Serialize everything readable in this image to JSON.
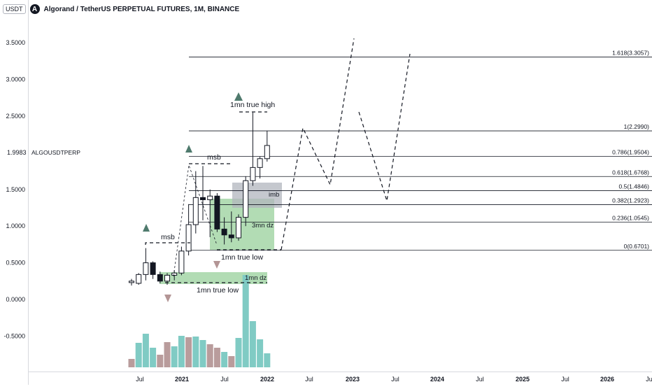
{
  "header": {
    "currency_badge": "USDT",
    "logo_glyph": "A",
    "title": "Algorand / TetherUS PERPETUAL FUTURES, 1M, BINANCE"
  },
  "price_axis": {
    "ticks": [
      {
        "label": "3.5000",
        "value": 3.5
      },
      {
        "label": "3.0000",
        "value": 3.0
      },
      {
        "label": "2.5000",
        "value": 2.5
      },
      {
        "label": "1.5000",
        "value": 1.5
      },
      {
        "label": "1.0000",
        "value": 1.0
      },
      {
        "label": "0.5000",
        "value": 0.5
      },
      {
        "label": "0.0000",
        "value": 0.0
      },
      {
        "label": "-0.5000",
        "value": -0.5
      }
    ],
    "current_price": "1.9983",
    "symbol_label": "ALGOUSDTPERP"
  },
  "time_axis": {
    "ticks": [
      "Jul",
      "2021",
      "Jul",
      "2022",
      "Jul",
      "2023",
      "Jul",
      "2024",
      "Jul",
      "2025",
      "Jul",
      "2026",
      "Jul"
    ]
  },
  "fib_levels": [
    {
      "label": "1.618(3.3057)",
      "value": 3.3057
    },
    {
      "label": "1(2.2990)",
      "value": 2.299
    },
    {
      "label": "0.786(1.9504)",
      "value": 1.9504
    },
    {
      "label": "0.618(1.6768)",
      "value": 1.6768
    },
    {
      "label": "0.5(1.4846)",
      "value": 1.4846
    },
    {
      "label": "0.382(1.2923)",
      "value": 1.2923
    },
    {
      "label": "0.236(1.0545)",
      "value": 1.0545
    },
    {
      "label": "0(0.6701)",
      "value": 0.6701
    }
  ],
  "annotations": {
    "true_high": "1mn true high",
    "msb_upper": "msb",
    "msb_lower": "msb",
    "imb": "imb",
    "dz_3mn": "3mn dz",
    "true_low_upper": "1mn true low",
    "dz_1mn": "1mn dz",
    "true_low_lower": "1mn true low"
  },
  "colors": {
    "bull_candle": "#ffffff",
    "bear_candle": "#131722",
    "demand_zone": "#a5d6a7",
    "imbalance_zone": "#b2b5be",
    "volume_up": "#80cbc4",
    "volume_down": "#b99c9c",
    "up_arrow": "#4f7a6d",
    "down_arrow": "#b39595"
  },
  "candles": [
    {
      "o": 0.23,
      "h": 0.28,
      "l": 0.19,
      "c": 0.25
    },
    {
      "o": 0.22,
      "h": 0.36,
      "l": 0.2,
      "c": 0.34
    },
    {
      "o": 0.34,
      "h": 0.7,
      "l": 0.26,
      "c": 0.5
    },
    {
      "o": 0.5,
      "h": 0.52,
      "l": 0.28,
      "c": 0.34
    },
    {
      "o": 0.34,
      "h": 0.38,
      "l": 0.22,
      "c": 0.25
    },
    {
      "o": 0.25,
      "h": 0.36,
      "l": 0.2,
      "c": 0.33
    },
    {
      "o": 0.33,
      "h": 0.4,
      "l": 0.26,
      "c": 0.36
    },
    {
      "o": 0.36,
      "h": 0.72,
      "l": 0.33,
      "c": 0.66
    },
    {
      "o": 0.66,
      "h": 1.3,
      "l": 0.6,
      "c": 1.02
    },
    {
      "o": 1.02,
      "h": 1.75,
      "l": 0.9,
      "c": 1.39
    },
    {
      "o": 1.39,
      "h": 1.82,
      "l": 1.08,
      "c": 1.36
    },
    {
      "o": 1.36,
      "h": 1.5,
      "l": 0.85,
      "c": 1.41
    },
    {
      "o": 1.41,
      "h": 1.45,
      "l": 0.92,
      "c": 0.96
    },
    {
      "o": 0.96,
      "h": 1.12,
      "l": 0.75,
      "c": 0.88
    },
    {
      "o": 0.88,
      "h": 1.2,
      "l": 0.78,
      "c": 0.84
    },
    {
      "o": 0.84,
      "h": 1.16,
      "l": 0.8,
      "c": 1.12
    },
    {
      "o": 1.12,
      "h": 1.68,
      "l": 1.0,
      "c": 1.62
    },
    {
      "o": 1.62,
      "h": 2.55,
      "l": 1.55,
      "c": 1.8
    },
    {
      "o": 1.8,
      "h": 1.95,
      "l": 1.65,
      "c": 1.92
    },
    {
      "o": 1.92,
      "h": 2.3,
      "l": 1.88,
      "c": 2.1
    }
  ],
  "volume_bars": [
    {
      "v": 12,
      "up": false
    },
    {
      "v": 35,
      "up": true
    },
    {
      "v": 48,
      "up": true
    },
    {
      "v": 28,
      "up": true
    },
    {
      "v": 18,
      "up": false
    },
    {
      "v": 36,
      "up": false
    },
    {
      "v": 30,
      "up": true
    },
    {
      "v": 45,
      "up": true
    },
    {
      "v": 43,
      "up": false
    },
    {
      "v": 44,
      "up": true
    },
    {
      "v": 39,
      "up": true
    },
    {
      "v": 33,
      "up": false
    },
    {
      "v": 28,
      "up": false
    },
    {
      "v": 22,
      "up": true
    },
    {
      "v": 16,
      "up": false
    },
    {
      "v": 42,
      "up": true
    },
    {
      "v": 132,
      "up": true
    },
    {
      "v": 66,
      "up": true
    },
    {
      "v": 40,
      "up": true
    },
    {
      "v": 20,
      "up": true
    }
  ]
}
